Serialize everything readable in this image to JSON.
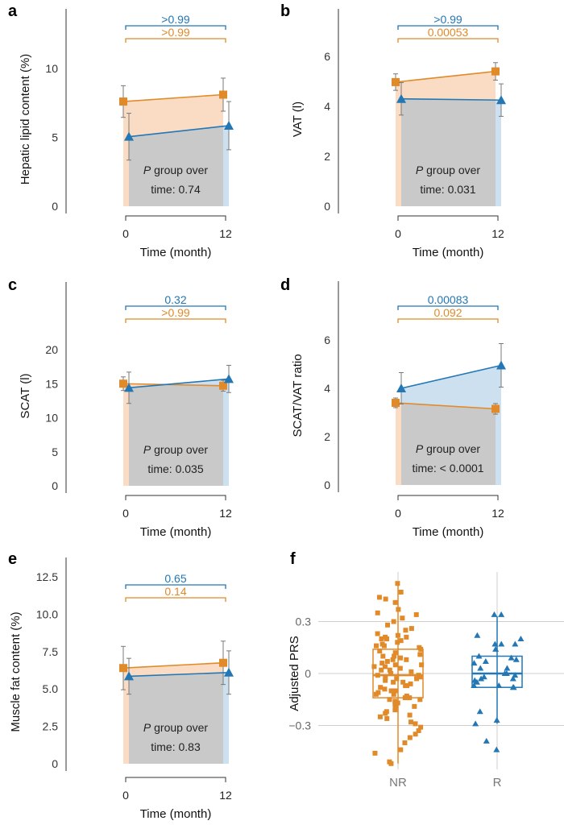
{
  "colors": {
    "NR": "#e08a2a",
    "R": "#2277b4",
    "NR_fill": "#f9dcc3",
    "R_fill": "#cde0ef",
    "overlap_fill": "#c9c9c9",
    "error": "#7a7a7a"
  },
  "chart_data": [
    {
      "type": "line",
      "letter": "a",
      "ylabel": "Hepatic lipid content (%)",
      "xlabel": "Time (month)",
      "x": [
        0,
        12
      ],
      "xticks": [
        "0",
        "12"
      ],
      "yticks": [
        0,
        5,
        10
      ],
      "ytick_labels": [
        "0",
        "5",
        "10"
      ],
      "ylim": [
        0,
        13.7
      ],
      "series": [
        {
          "name": "NR",
          "values": [
            7.6,
            8.1
          ],
          "errors": [
            1.15,
            1.2
          ]
        },
        {
          "name": "R",
          "values": [
            5.05,
            5.85
          ],
          "errors": [
            1.7,
            1.75
          ]
        }
      ],
      "brackets": {
        "R": ">0.99",
        "NR": ">0.99"
      },
      "annotation": {
        "p": "P",
        "line1": " group over",
        "line2": "time: 0.74"
      }
    },
    {
      "type": "line",
      "letter": "b",
      "ylabel": "VAT (l)",
      "xlabel": "Time (month)",
      "x": [
        0,
        12
      ],
      "xticks": [
        "0",
        "12"
      ],
      "yticks": [
        0,
        2,
        4,
        6
      ],
      "ytick_labels": [
        "0",
        "2",
        "4",
        "6"
      ],
      "ylim": [
        0,
        7.5
      ],
      "series": [
        {
          "name": "NR",
          "values": [
            4.97,
            5.4
          ],
          "errors": [
            0.33,
            0.35
          ]
        },
        {
          "name": "R",
          "values": [
            4.3,
            4.25
          ],
          "errors": [
            0.65,
            0.65
          ]
        }
      ],
      "brackets": {
        "R": ">0.99",
        "NR": "0.00053"
      },
      "annotation": {
        "p": "P",
        "line1": " group over",
        "line2": "time: 0.031"
      }
    },
    {
      "type": "line",
      "letter": "c",
      "ylabel": "SCAT (l)",
      "xlabel": "Time (month)",
      "x": [
        0,
        12
      ],
      "xticks": [
        "0",
        "12"
      ],
      "yticks": [
        0,
        5,
        10,
        15,
        20
      ],
      "ytick_labels": [
        "0",
        "5",
        "10",
        "15",
        "20"
      ],
      "ylim": [
        0,
        23
      ],
      "series": [
        {
          "name": "NR",
          "values": [
            15.0,
            14.7
          ],
          "errors": [
            1.0,
            0.8
          ]
        },
        {
          "name": "R",
          "values": [
            14.4,
            15.7
          ],
          "errors": [
            2.3,
            2.0
          ]
        }
      ],
      "brackets": {
        "R": "0.32",
        "NR": ">0.99"
      },
      "annotation": {
        "p": "P",
        "line1": " group over",
        "line2": "time: 0.035"
      }
    },
    {
      "type": "line",
      "letter": "d",
      "ylabel": "SCAT/VAT ratio",
      "xlabel": "Time (month)",
      "x": [
        0,
        12
      ],
      "xticks": [
        "0",
        "12"
      ],
      "yticks": [
        0,
        2,
        4,
        6
      ],
      "ytick_labels": [
        "0",
        "2",
        "4",
        "6"
      ],
      "ylim": [
        0,
        7.8
      ],
      "series": [
        {
          "name": "NR",
          "values": [
            3.4,
            3.15
          ],
          "errors": [
            0.2,
            0.22
          ]
        },
        {
          "name": "R",
          "values": [
            4.0,
            4.95
          ],
          "errors": [
            0.65,
            0.9
          ]
        }
      ],
      "brackets": {
        "R": "0.00083",
        "NR": "0.092"
      },
      "annotation": {
        "p": "P",
        "line1": " group over",
        "line2": "time: < 0.0001"
      }
    },
    {
      "type": "line",
      "letter": "e",
      "ylabel": "Muscle fat content (%)",
      "xlabel": "Time (month)",
      "x": [
        0,
        12
      ],
      "xticks": [
        "0",
        "12"
      ],
      "yticks": [
        0,
        2.5,
        5,
        7.5,
        10,
        12.5
      ],
      "ytick_labels": [
        "0",
        "2.5",
        "5.0",
        "7.5",
        "10.0",
        "12.5"
      ],
      "ylim": [
        0,
        12.8
      ],
      "series": [
        {
          "name": "NR",
          "values": [
            6.4,
            6.75
          ],
          "errors": [
            1.45,
            1.45
          ]
        },
        {
          "name": "R",
          "values": [
            5.85,
            6.1
          ],
          "errors": [
            1.2,
            1.45
          ]
        }
      ],
      "brackets": {
        "R": "0.65",
        "NR": "0.14"
      },
      "annotation": {
        "p": "P",
        "line1": " group over",
        "line2": "time: 0.83"
      }
    },
    {
      "type": "box",
      "letter": "f",
      "ylabel": "Adjusted PRS",
      "categories": [
        "NR",
        "R"
      ],
      "yticks": [
        0.3,
        0,
        -0.3
      ],
      "ytick_labels": [
        "0.3",
        "0",
        "−0.3"
      ],
      "boxes": [
        {
          "name": "NR",
          "q1": -0.14,
          "median": -0.01,
          "q3": 0.14,
          "whisker_low": -0.52,
          "whisker_high": 0.52
        },
        {
          "name": "R",
          "q1": -0.08,
          "median": 0.0,
          "q3": 0.1,
          "whisker_low": -0.29,
          "whisker_high": 0.33
        }
      ],
      "points": {
        "NR": [
          0.52,
          0.47,
          0.44,
          0.43,
          0.41,
          0.37,
          0.35,
          0.34,
          0.32,
          0.3,
          0.28,
          0.26,
          0.25,
          0.23,
          0.22,
          0.21,
          0.21,
          0.2,
          0.19,
          0.18,
          0.17,
          0.16,
          0.15,
          0.14,
          0.13,
          0.12,
          0.11,
          0.1,
          0.1,
          0.09,
          0.08,
          0.07,
          0.06,
          0.05,
          0.05,
          0.04,
          0.03,
          0.02,
          0.02,
          0.01,
          0.0,
          0.0,
          -0.01,
          -0.01,
          -0.02,
          -0.03,
          -0.03,
          -0.04,
          -0.05,
          -0.05,
          -0.06,
          -0.07,
          -0.08,
          -0.09,
          -0.1,
          -0.11,
          -0.12,
          -0.12,
          -0.13,
          -0.14,
          -0.15,
          -0.15,
          -0.16,
          -0.17,
          -0.18,
          -0.19,
          -0.2,
          -0.21,
          -0.22,
          -0.23,
          -0.24,
          -0.25,
          -0.26,
          -0.28,
          -0.29,
          -0.31,
          -0.33,
          -0.35,
          -0.37,
          -0.4,
          -0.44,
          -0.46,
          -0.51,
          -0.52,
          0.16,
          0.08,
          -0.07,
          -0.14,
          0.2,
          -0.02,
          0.04,
          -0.1
        ],
        "R": [
          0.34,
          0.34,
          0.22,
          0.2,
          0.17,
          0.17,
          0.17,
          0.14,
          0.1,
          0.09,
          0.08,
          0.07,
          0.06,
          0.03,
          0.03,
          0.0,
          0.0,
          -0.01,
          -0.02,
          -0.03,
          -0.03,
          -0.04,
          -0.05,
          -0.07,
          -0.07,
          -0.08,
          -0.08,
          -0.22,
          -0.27,
          -0.29,
          -0.39,
          -0.44
        ]
      }
    }
  ]
}
